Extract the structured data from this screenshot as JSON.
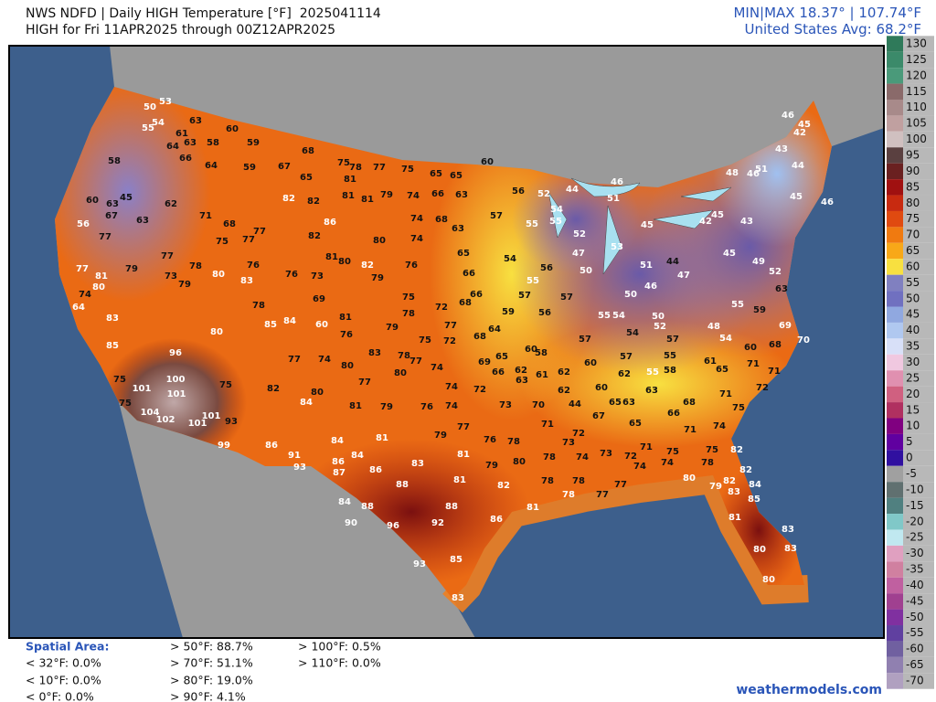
{
  "header": {
    "title": "NWS NDFD | Daily HIGH Temperature [°F]  2025041114",
    "subtitle": "HIGH for Fri 11APR2025 through 00Z12APR2025",
    "minmax": "MIN|MAX 18.37° | 107.74°F",
    "average": "United States Avg: 68.2°F"
  },
  "map": {
    "station_labels": [
      53,
      50,
      54,
      63,
      55,
      61,
      60,
      64,
      63,
      58,
      59,
      68,
      75,
      78,
      77,
      75,
      65,
      65,
      60,
      58,
      66,
      64,
      59,
      67,
      65,
      81,
      79,
      74,
      66,
      63,
      56,
      60,
      63,
      45,
      62,
      82,
      82,
      81,
      81,
      57,
      52,
      44,
      46,
      51,
      48,
      46,
      51,
      46,
      45,
      42,
      43,
      44,
      45,
      46,
      56,
      67,
      63,
      71,
      68,
      86,
      74,
      68,
      54,
      55,
      42,
      45,
      43,
      77,
      77,
      75,
      77,
      82,
      80,
      74,
      63,
      55,
      52,
      45,
      44,
      77,
      78,
      80,
      76,
      81,
      80,
      76,
      65,
      54,
      56,
      47,
      53,
      77,
      81,
      79,
      73,
      83,
      76,
      73,
      82,
      79,
      66,
      55,
      50,
      51,
      47,
      45,
      49,
      52,
      74,
      80,
      79,
      75,
      72,
      68,
      57,
      57,
      50,
      46,
      55,
      63,
      64,
      78,
      69,
      81,
      78,
      66,
      56,
      55,
      54,
      50,
      48,
      59,
      69,
      83,
      85,
      84,
      60,
      79,
      77,
      59,
      52,
      57,
      54,
      70,
      85,
      80,
      76,
      75,
      72,
      68,
      64,
      57,
      54,
      55,
      60,
      68,
      96,
      77,
      74,
      83,
      78,
      77,
      74,
      69,
      65,
      60,
      58,
      57,
      61,
      71,
      80,
      80,
      66,
      62,
      61,
      62,
      60,
      62,
      55,
      58,
      65,
      71,
      100,
      75,
      77,
      74,
      72,
      63,
      62,
      60,
      63,
      72,
      101,
      101,
      75,
      82,
      80,
      84,
      81,
      79,
      76,
      74,
      73,
      70,
      44,
      65,
      63,
      68,
      71,
      75,
      75,
      104,
      102,
      101,
      101,
      93,
      67,
      66,
      71,
      65,
      79,
      77,
      72,
      71,
      74,
      99,
      86,
      84,
      81,
      76,
      78,
      73,
      71,
      75,
      91,
      86,
      84,
      81,
      75,
      82,
      93,
      87,
      86,
      83,
      79,
      80,
      78,
      74,
      73,
      72,
      74,
      74,
      78,
      88,
      81,
      82,
      78,
      78,
      77,
      82,
      80,
      79,
      82,
      84,
      83,
      84,
      88,
      88,
      81,
      78,
      77,
      85,
      86,
      90,
      96,
      92,
      81,
      83,
      85,
      93,
      80,
      83,
      80,
      83
    ]
  },
  "colorbar": {
    "ticks": [
      130,
      125,
      120,
      115,
      110,
      105,
      100,
      95,
      90,
      85,
      80,
      75,
      70,
      65,
      60,
      55,
      50,
      45,
      40,
      35,
      30,
      25,
      20,
      15,
      10,
      5,
      0,
      -5,
      -10,
      -15,
      -20,
      -25,
      -30,
      -35,
      -40,
      -45,
      -50,
      -55,
      -60,
      -65,
      -70
    ],
    "colors": [
      "#2f7a5a",
      "#3b8a6a",
      "#4a9a7a",
      "#8a6a6a",
      "#a88a8a",
      "#c0a0a0",
      "#d0c0c0",
      "#5a4040",
      "#6a2020",
      "#a01010",
      "#c82a10",
      "#e04a10",
      "#f07a10",
      "#f8a818",
      "#f8e040",
      "#8080c0",
      "#7070c0",
      "#90a8e0",
      "#b0c8f0",
      "#d8e0f8",
      "#f0c8e0",
      "#e090b0",
      "#d06080",
      "#b03060",
      "#800080",
      "#6000a0",
      "#3010a0",
      "#a0a0a0",
      "#607070",
      "#508080",
      "#80c8c8",
      "#c0e8f0",
      "#e0a0c0",
      "#d080a0",
      "#c060a0",
      "#a04090",
      "#8030a0",
      "#6040a0",
      "#7060a0",
      "#9080b0",
      "#b0a0c0"
    ]
  },
  "stats": {
    "title": "Spatial Area:",
    "items": [
      "< 32°F: 0.0%",
      "< 10°F: 0.0%",
      "< 0°F: 0.0%",
      "> 50°F: 88.7%",
      "> 70°F: 51.1%",
      "> 80°F: 19.0%",
      "> 90°F: 4.1%",
      "> 100°F: 0.5%",
      "> 110°F: 0.0%"
    ]
  },
  "footer": "weathermodels.com"
}
